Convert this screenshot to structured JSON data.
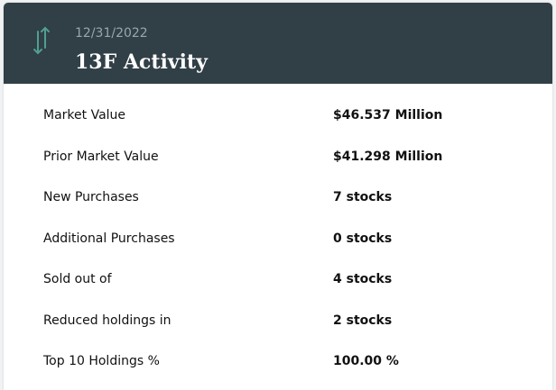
{
  "header": {
    "date": "12/31/2022",
    "title": "13F Activity"
  },
  "table": {
    "rows": [
      [
        "Market Value",
        "$46.537 Million"
      ],
      [
        "Prior Market Value",
        "$41.298 Million"
      ],
      [
        "New Purchases",
        "7 stocks"
      ],
      [
        "Additional Purchases",
        "0 stocks"
      ],
      [
        "Sold out of",
        "4 stocks"
      ],
      [
        "Reduced holdings in",
        "2 stocks"
      ],
      [
        "Top 10 Holdings %",
        "100.00 %"
      ]
    ]
  }
}
